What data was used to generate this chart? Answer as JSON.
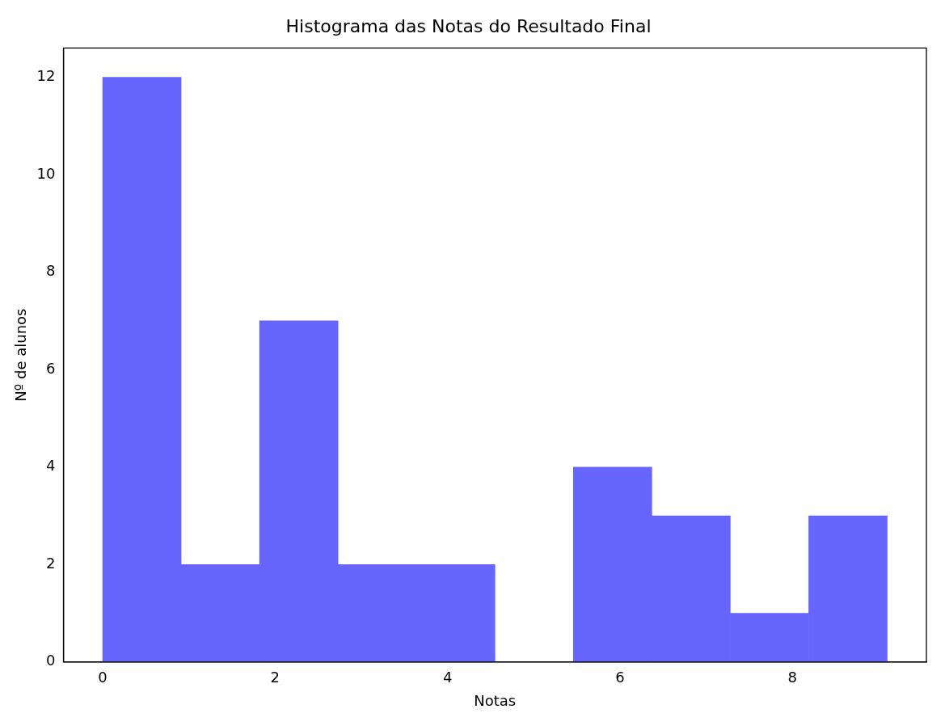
{
  "chart_data": {
    "type": "histogram",
    "title": "Histograma das Notas do Resultado Final",
    "xlabel": "Notas",
    "ylabel": "Nº de alunos",
    "bins": [
      0,
      0.91,
      1.82,
      2.73,
      3.64,
      4.55,
      5.46,
      6.37,
      7.28,
      8.19,
      9.1
    ],
    "values": [
      12,
      2,
      7,
      2,
      2,
      0,
      4,
      3,
      1,
      3
    ],
    "color": "#6666ff",
    "xlim": [
      -0.455,
      9.555
    ],
    "xticks": [
      0,
      2,
      4,
      6,
      8
    ],
    "ylim": [
      0,
      12.6
    ],
    "yticks": [
      0,
      2,
      4,
      6,
      8,
      10,
      12
    ],
    "grid": false,
    "legend": false
  }
}
